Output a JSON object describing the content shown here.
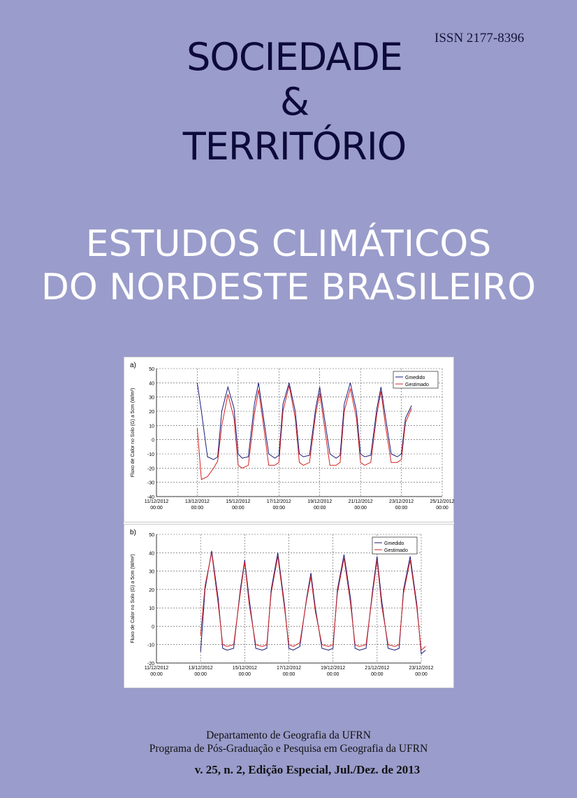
{
  "issn": "ISSN 2177-8396",
  "journal": {
    "line1": "SOCIEDADE",
    "line2": "&",
    "line3": "TERRITÓRIO"
  },
  "issue_title": {
    "line1": "ESTUDOS CLIMÁTICOS",
    "line2": "DO NORDESTE BRASILEIRO"
  },
  "footer": {
    "line1": "Departamento de Geografia da UFRN",
    "line2": "Programa de Pós-Graduação e Pesquisa em Geografia da UFRN",
    "volume": "v. 25, n. 2, Edição Especial, Jul./Dez. de 2013"
  },
  "colors": {
    "background": "#9a9ccb",
    "series_observed": "#1a1a7a",
    "series_simulated": "#d42020"
  },
  "chart_data": [
    {
      "type": "line",
      "panel_label": "a)",
      "ylabel": "Fluxo de Calor no Solo (G) a 5cm (W/m²)",
      "ylim": [
        -40,
        50
      ],
      "yticks": [
        -40,
        -30,
        -20,
        -10,
        0,
        10,
        20,
        30,
        40,
        50
      ],
      "xtick_labels": [
        [
          "11/12/2012",
          "00:00"
        ],
        [
          "13/12/2012",
          "00:00"
        ],
        [
          "15/12/2012",
          "00:00"
        ],
        [
          "17/12/2012",
          "00:00"
        ],
        [
          "19/12/2012",
          "00:00"
        ],
        [
          "21/12/2012",
          "00:00"
        ],
        [
          "23/12/2012",
          "00:00"
        ],
        [
          "25/12/2012",
          "00:00"
        ]
      ],
      "grid": true,
      "legend_position": "top-right",
      "series": [
        {
          "name": "Gmedido",
          "color": "#1a1a7a",
          "x": [
            2.0,
            2.2,
            2.5,
            2.8,
            3.0,
            3.2,
            3.5,
            3.8,
            4.0,
            4.2,
            4.5,
            4.8,
            5.0,
            5.2,
            5.5,
            5.8,
            6.0,
            6.2,
            6.5,
            6.8,
            7.0,
            7.2,
            7.5,
            7.8,
            8.0,
            8.2,
            8.5,
            8.8,
            9.0,
            9.2,
            9.5,
            9.8,
            10.0,
            10.2,
            10.5,
            10.8,
            11.0,
            11.2,
            11.5,
            11.8,
            12.0,
            12.2,
            12.5
          ],
          "y": [
            40,
            20,
            -12,
            -14,
            -12,
            20,
            37,
            22,
            -10,
            -13,
            -12,
            25,
            40,
            20,
            -10,
            -13,
            -11,
            25,
            40,
            20,
            -10,
            -12,
            -11,
            22,
            37,
            18,
            -10,
            -13,
            -11,
            25,
            40,
            20,
            -10,
            -12,
            -11,
            22,
            37,
            18,
            -10,
            -12,
            -10,
            15,
            24
          ]
        },
        {
          "name": "Gestimado",
          "color": "#d42020",
          "x": [
            2.0,
            2.2,
            2.5,
            2.8,
            3.0,
            3.2,
            3.5,
            3.8,
            4.0,
            4.2,
            4.5,
            4.8,
            5.0,
            5.2,
            5.5,
            5.8,
            6.0,
            6.2,
            6.5,
            6.8,
            7.0,
            7.2,
            7.5,
            7.8,
            8.0,
            8.2,
            8.5,
            8.8,
            9.0,
            9.2,
            9.5,
            9.8,
            10.0,
            10.2,
            10.5,
            10.8,
            11.0,
            11.2,
            11.5,
            11.8,
            12.0,
            12.2,
            12.5
          ],
          "y": [
            8,
            -28,
            -26,
            -20,
            -15,
            10,
            32,
            15,
            -18,
            -20,
            -18,
            18,
            35,
            15,
            -18,
            -18,
            -16,
            20,
            38,
            15,
            -16,
            -18,
            -16,
            18,
            33,
            12,
            -18,
            -18,
            -16,
            20,
            36,
            15,
            -16,
            -18,
            -16,
            18,
            34,
            12,
            -16,
            -16,
            -14,
            12,
            22
          ]
        }
      ]
    },
    {
      "type": "line",
      "panel_label": "b)",
      "ylabel": "Fluxo de Calor no Solo (G) a 5cm (W/m²)",
      "ylim": [
        -20,
        50
      ],
      "yticks": [
        -20,
        -10,
        0,
        10,
        20,
        30,
        40,
        50
      ],
      "xtick_labels": [
        [
          "11/12/2012",
          "00:00"
        ],
        [
          "13/12/2012",
          "00:00"
        ],
        [
          "15/12/2012",
          "00:00"
        ],
        [
          "17/12/2012",
          "00:00"
        ],
        [
          "19/12/2012",
          "00:00"
        ],
        [
          "21/12/2012",
          "00:00"
        ],
        [
          "23/12/2012",
          "00:00"
        ]
      ],
      "grid": true,
      "legend_position": "top-right",
      "series": [
        {
          "name": "Gmedido",
          "color": "#1a1a7a",
          "x": [
            2.0,
            2.2,
            2.5,
            2.8,
            3.0,
            3.2,
            3.5,
            3.8,
            4.0,
            4.2,
            4.5,
            4.8,
            5.0,
            5.2,
            5.5,
            5.8,
            6.0,
            6.2,
            6.5,
            6.8,
            7.0,
            7.2,
            7.5,
            7.8,
            8.0,
            8.2,
            8.5,
            8.8,
            9.0,
            9.2,
            9.5,
            9.8,
            10.0,
            10.2,
            10.5,
            10.8,
            11.0,
            11.2,
            11.5,
            11.8,
            12.0,
            12.2
          ],
          "y": [
            -14,
            20,
            41,
            15,
            -12,
            -13,
            -12,
            20,
            36,
            15,
            -12,
            -13,
            -12,
            20,
            40,
            12,
            -12,
            -13,
            -11,
            15,
            29,
            10,
            -12,
            -13,
            -12,
            20,
            39,
            15,
            -12,
            -13,
            -12,
            20,
            38,
            15,
            -12,
            -13,
            -12,
            20,
            38,
            12,
            -15,
            -13
          ]
        },
        {
          "name": "Gestimado",
          "color": "#d42020",
          "x": [
            2.0,
            2.2,
            2.5,
            2.8,
            3.0,
            3.2,
            3.5,
            3.8,
            4.0,
            4.2,
            4.5,
            4.8,
            5.0,
            5.2,
            5.5,
            5.8,
            6.0,
            6.2,
            6.5,
            6.8,
            7.0,
            7.2,
            7.5,
            7.8,
            8.0,
            8.2,
            8.5,
            8.8,
            9.0,
            9.2,
            9.5,
            9.8,
            10.0,
            10.2,
            10.5,
            10.8,
            11.0,
            11.2,
            11.5,
            11.8,
            12.0,
            12.2
          ],
          "y": [
            -5,
            22,
            40,
            12,
            -10,
            -11,
            -10,
            18,
            35,
            12,
            -10,
            -11,
            -10,
            18,
            38,
            10,
            -10,
            -11,
            -9,
            14,
            27,
            8,
            -10,
            -11,
            -10,
            18,
            37,
            12,
            -10,
            -11,
            -10,
            18,
            36,
            12,
            -10,
            -11,
            -10,
            18,
            36,
            10,
            -13,
            -11
          ]
        }
      ]
    }
  ]
}
